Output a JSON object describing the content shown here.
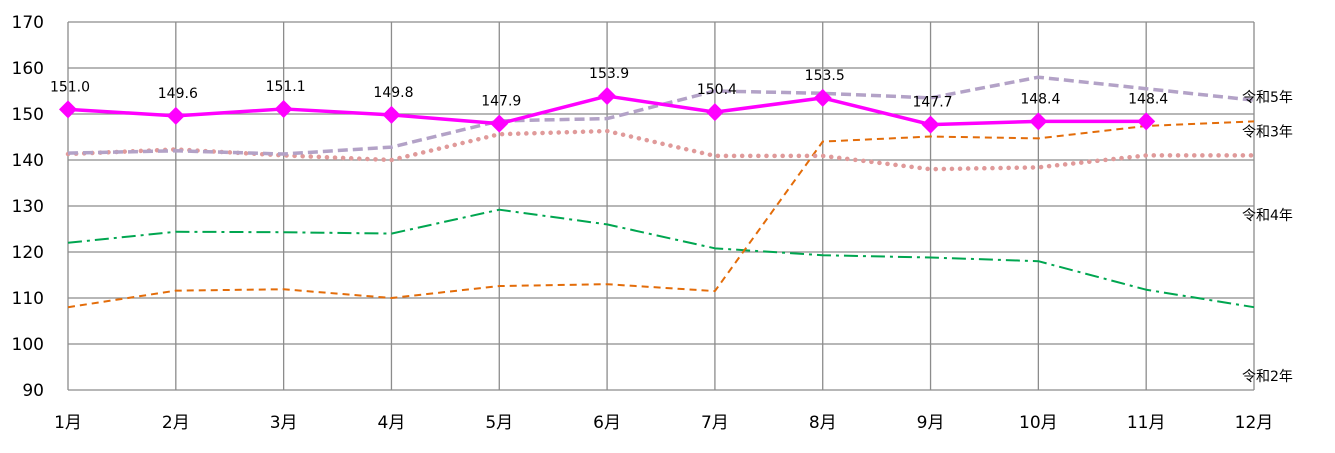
{
  "chart_data": {
    "type": "line",
    "categories": [
      "1月",
      "2月",
      "3月",
      "4月",
      "5月",
      "6月",
      "7月",
      "8月",
      "9月",
      "10月",
      "11月",
      "12月"
    ],
    "ylim": [
      90,
      170
    ],
    "yticks": [
      90,
      100,
      110,
      120,
      130,
      140,
      150,
      160,
      170
    ],
    "grid": true,
    "series": [
      {
        "name": "令和2年",
        "values": [
          122.0,
          124.4,
          124.3,
          124.0,
          129.2,
          126.0,
          120.8,
          119.3,
          118.8,
          118.0,
          111.8,
          108.0
        ],
        "color": "#00A650",
        "style": "dashdot"
      },
      {
        "name": "令和3年",
        "values": [
          108.0,
          111.6,
          111.9,
          110.0,
          112.6,
          113.0,
          111.5,
          144.0,
          145.1,
          144.7,
          147.4,
          148.4
        ],
        "color": "#E36C09",
        "style": "dashed"
      },
      {
        "name": "令和4年",
        "values": [
          141.3,
          142.3,
          141.0,
          140.0,
          145.6,
          146.3,
          140.9,
          140.9,
          138.0,
          138.4,
          141.0,
          141.0
        ],
        "color": "#E09A9A",
        "style": "dotted"
      },
      {
        "name": "令和5年",
        "values": [
          141.5,
          142.0,
          141.3,
          142.8,
          148.5,
          149.0,
          155.0,
          154.5,
          153.5,
          158.0,
          155.5,
          153.0
        ],
        "color": "#B3A2C7",
        "style": "dashed-thick"
      },
      {
        "name": "",
        "values": [
          151.0,
          149.6,
          151.1,
          149.8,
          147.9,
          153.9,
          150.4,
          153.5,
          147.7,
          148.4,
          148.4,
          null
        ],
        "labels": [
          "151.0",
          "149.6",
          "151.1",
          "149.8",
          "147.9",
          "153.9",
          "150.4",
          "153.5",
          "147.7",
          "148.4",
          "148.4",
          ""
        ],
        "color": "#FF00FF",
        "style": "solid-diamond"
      }
    ],
    "series_end_labels": [
      "令和5年",
      "令和3年",
      "令和4年",
      "令和2年"
    ]
  }
}
